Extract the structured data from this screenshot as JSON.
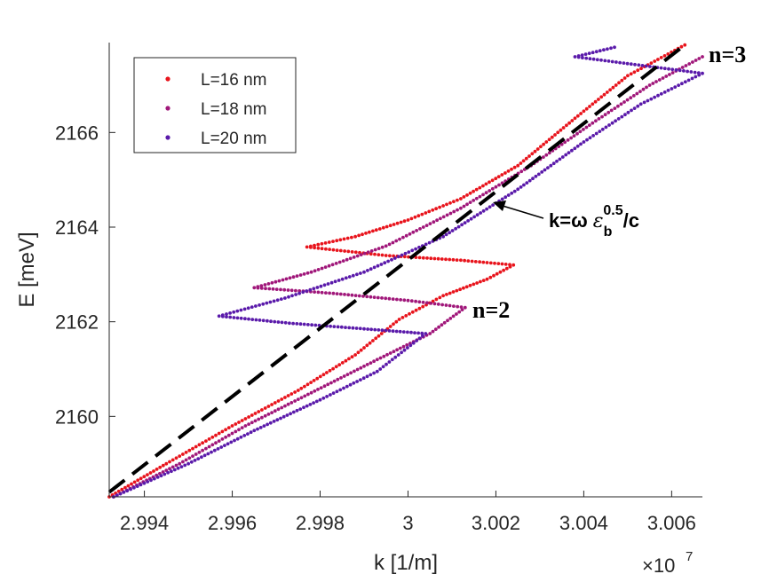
{
  "chart_data": {
    "type": "scatter",
    "title": "",
    "xlabel": "k [1/m]",
    "ylabel": "E [meV]",
    "x_exponent_label": "×10",
    "x_exponent_power": "7",
    "xlim": [
      2.9932,
      3.0067
    ],
    "ylim": [
      2158.3,
      2167.9
    ],
    "x_ticks": [
      2.994,
      2.996,
      2.998,
      3.0,
      3.002,
      3.004,
      3.006
    ],
    "x_tick_labels": [
      "2.994",
      "2.996",
      "2.998",
      "3",
      "3.002",
      "3.004",
      "3.006"
    ],
    "y_ticks": [
      2160,
      2162,
      2164,
      2166
    ],
    "y_tick_labels": [
      "2160",
      "2162",
      "2164",
      "2166"
    ],
    "grid": false,
    "legend_position": "top-left",
    "series": [
      {
        "name": "L=16 nm",
        "color": "#e8141c",
        "points": [
          [
            2.9932,
            2158.3
          ],
          [
            2.9945,
            2159.0
          ],
          [
            2.996,
            2159.8
          ],
          [
            2.9975,
            2160.55
          ],
          [
            2.9988,
            2161.3
          ],
          [
            2.9998,
            2162.05
          ],
          [
            3.0008,
            2162.55
          ],
          [
            3.0018,
            2162.9
          ],
          [
            3.0024,
            2163.2
          ],
          [
            3.0012,
            2163.3
          ],
          [
            2.9995,
            2163.4
          ],
          [
            2.9977,
            2163.58
          ],
          [
            2.9988,
            2163.8
          ],
          [
            3.0,
            2164.15
          ],
          [
            3.0012,
            2164.6
          ],
          [
            3.0025,
            2165.3
          ],
          [
            3.0038,
            2166.3
          ],
          [
            3.005,
            2167.2
          ],
          [
            3.0063,
            2167.85
          ]
        ]
      },
      {
        "name": "L=18 nm",
        "color": "#a0177a",
        "points": [
          [
            2.9933,
            2158.3
          ],
          [
            2.9948,
            2159.0
          ],
          [
            2.9963,
            2159.8
          ],
          [
            2.9978,
            2160.5
          ],
          [
            2.9993,
            2161.2
          ],
          [
            3.0005,
            2161.75
          ],
          [
            3.0013,
            2162.3
          ],
          [
            3.0,
            2162.45
          ],
          [
            2.9983,
            2162.6
          ],
          [
            2.9965,
            2162.72
          ],
          [
            2.9978,
            2163.05
          ],
          [
            2.9995,
            2163.6
          ],
          [
            3.0012,
            2164.4
          ],
          [
            3.0028,
            2165.3
          ],
          [
            3.0042,
            2166.2
          ],
          [
            3.0055,
            2167.0
          ],
          [
            3.0067,
            2167.6
          ]
        ]
      },
      {
        "name": "L=20 nm",
        "color": "#5a1aaa",
        "points": [
          [
            2.9933,
            2158.3
          ],
          [
            2.995,
            2159.0
          ],
          [
            2.9965,
            2159.7
          ],
          [
            2.998,
            2160.35
          ],
          [
            2.9993,
            2160.95
          ],
          [
            3.0004,
            2161.75
          ],
          [
            2.999,
            2161.85
          ],
          [
            2.9973,
            2161.97
          ],
          [
            2.9957,
            2162.12
          ],
          [
            2.9972,
            2162.5
          ],
          [
            2.999,
            2163.05
          ],
          [
            3.0008,
            2163.8
          ],
          [
            3.0025,
            2164.8
          ],
          [
            3.004,
            2165.8
          ],
          [
            3.0053,
            2166.6
          ],
          [
            3.0067,
            2167.25
          ],
          [
            3.0038,
            2167.6
          ],
          [
            3.0047,
            2167.8
          ]
        ]
      },
      {
        "name": "k=ω ε_b^0.5/c",
        "color": "#000000",
        "style": "dashed",
        "points": [
          [
            2.9932,
            2158.4
          ],
          [
            3.0063,
            2167.85
          ]
        ]
      }
    ],
    "annotations": {
      "n2": "n=2",
      "n3": "n=3",
      "light_line_main": "k=ω ",
      "light_line_eps": "ε",
      "light_line_sub": "b",
      "light_line_sup": "0.5",
      "light_line_tail": "/c"
    }
  }
}
